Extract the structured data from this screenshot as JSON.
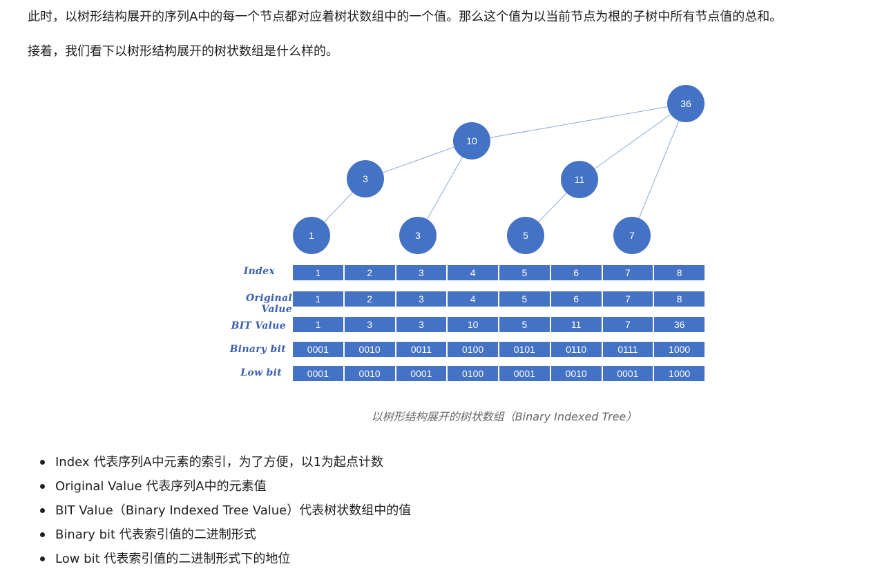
{
  "paragraphs": {
    "p1": "此时，以树形结构展开的序列A中的每一个节点都对应着树状数组中的一个值。那么这个值为以当前节点为根的子树中所有节点值的总和。",
    "p2": "接着，我们看下以树形结构展开的树状数组是什么样的。"
  },
  "tree": {
    "nodes": [
      "36",
      "10",
      "3",
      "11",
      "1",
      "3",
      "5",
      "7"
    ]
  },
  "table": {
    "rows": [
      {
        "label": "Index",
        "cells": [
          "1",
          "2",
          "3",
          "4",
          "5",
          "6",
          "7",
          "8"
        ]
      },
      {
        "label": "Original Value",
        "cells": [
          "1",
          "2",
          "3",
          "4",
          "5",
          "6",
          "7",
          "8"
        ]
      },
      {
        "label": "BIT Value",
        "cells": [
          "1",
          "3",
          "3",
          "10",
          "5",
          "11",
          "7",
          "36"
        ]
      },
      {
        "label": "Binary bit",
        "cells": [
          "0001",
          "0010",
          "0011",
          "0100",
          "0101",
          "0110",
          "0111",
          "1000"
        ]
      },
      {
        "label": "Low bit",
        "cells": [
          "0001",
          "0010",
          "0001",
          "0100",
          "0001",
          "0010",
          "0001",
          "1000"
        ]
      }
    ]
  },
  "caption": "以树形结构展开的树状数组（Binary Indexed Tree）",
  "bullets": [
    "Index 代表序列A中元素的索引，为了方便，以1为起点计数",
    "Original Value 代表序列A中的元素值",
    "BIT Value（Binary Indexed Tree Value）代表树状数组中的值",
    "Binary bit 代表索引值的二进制形式",
    "Low bit 代表索引值的二进制形式下的地位"
  ],
  "colors": {
    "node": "#4472c4",
    "edge": "#8fa9dc",
    "label": "#3a5fb0"
  }
}
